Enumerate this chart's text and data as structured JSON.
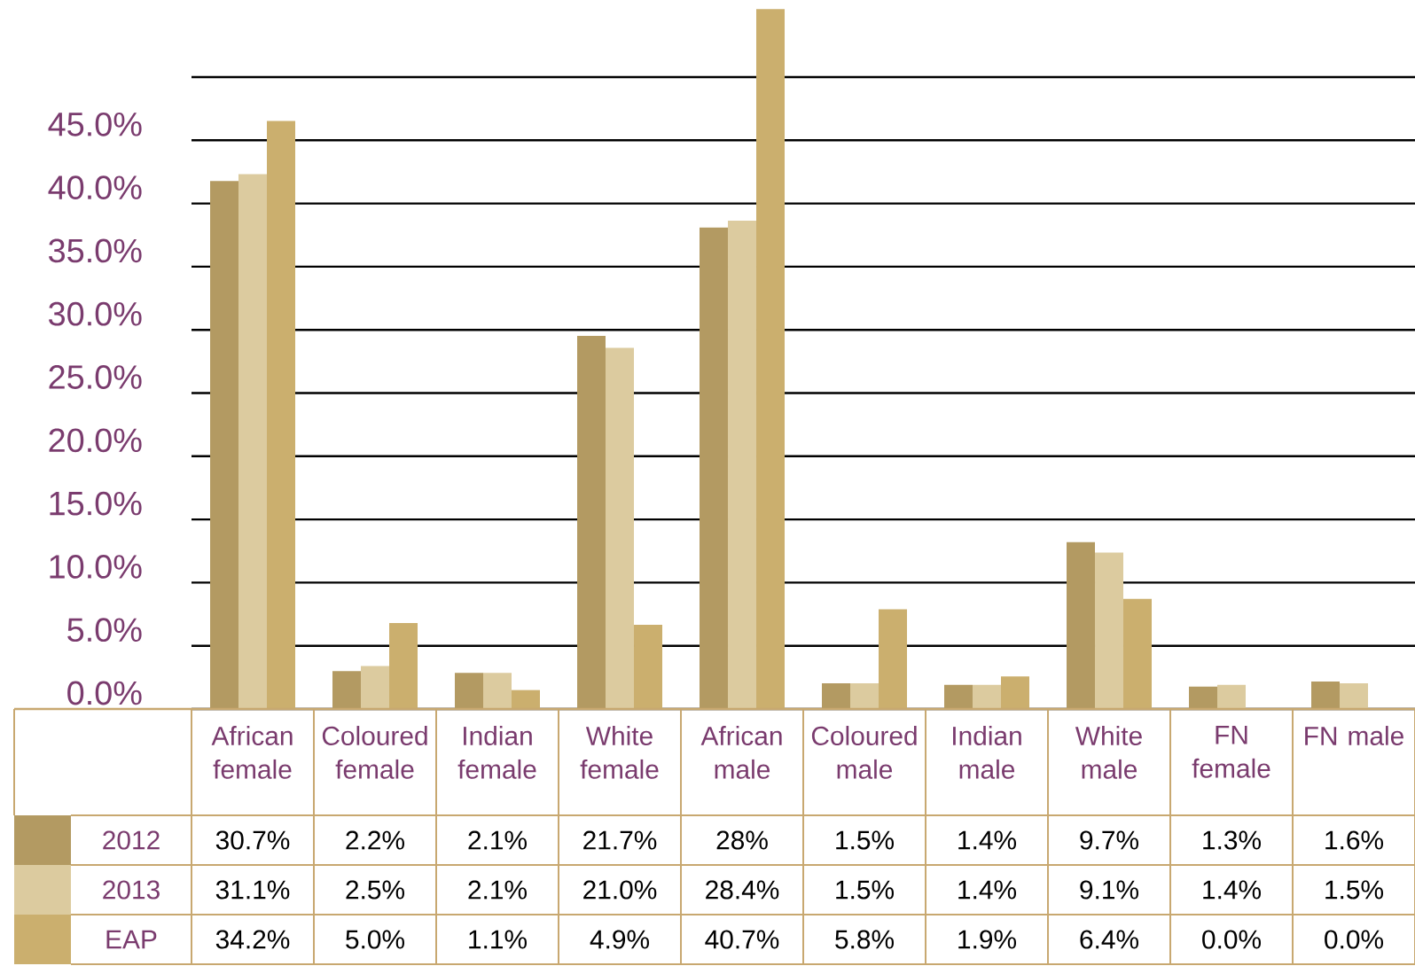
{
  "chart_data": {
    "type": "bar",
    "categories": [
      "African female",
      "Coloured female",
      "Indian female",
      "White female",
      "African male",
      "Coloured male",
      "Indian male",
      "White male",
      "FN female",
      "FN male"
    ],
    "series": [
      {
        "name": "2012",
        "color": "#b39a62",
        "values": [
          30.7,
          2.2,
          2.1,
          21.7,
          28,
          1.5,
          1.4,
          9.7,
          1.3,
          1.6
        ],
        "value_labels": [
          "30.7%",
          "2.2%",
          "2.1%",
          "21.7%",
          "28%",
          "1.5%",
          "1.4%",
          "9.7%",
          "1.3%",
          "1.6%"
        ]
      },
      {
        "name": "2013",
        "color": "#dccb9f",
        "values": [
          31.1,
          2.5,
          2.1,
          21.0,
          28.4,
          1.5,
          1.4,
          9.1,
          1.4,
          1.5
        ],
        "value_labels": [
          "31.1%",
          "2.5%",
          "2.1%",
          "21.0%",
          "28.4%",
          "1.5%",
          "1.4%",
          "9.1%",
          "1.4%",
          "1.5%"
        ]
      },
      {
        "name": "EAP",
        "color": "#cbaf6e",
        "values": [
          34.2,
          5.0,
          1.1,
          4.9,
          40.7,
          5.8,
          1.9,
          6.4,
          0.0,
          0.0
        ],
        "value_labels": [
          "34.2%",
          "5.0%",
          "1.1%",
          "4.9%",
          "40.7%",
          "5.8%",
          "1.9%",
          "6.4%",
          "0.0%",
          "0.0%"
        ]
      }
    ],
    "y2lim": [
      0,
      50
    ],
    "y2ticks": [
      {
        "value": 0,
        "label": "0.0%"
      },
      {
        "value": 5,
        "label": "5.0%"
      },
      {
        "value": 10,
        "label": "10.0%"
      },
      {
        "value": 15,
        "label": "15.0%"
      },
      {
        "value": 20,
        "label": "20.0%"
      },
      {
        "value": 25,
        "label": "25.0%"
      },
      {
        "value": 30,
        "label": "30.0%"
      },
      {
        "value": 35,
        "label": "35.0%"
      },
      {
        "value": 40,
        "label": "40.0%"
      },
      {
        "value": 45,
        "label": "45.0%"
      },
      {
        "value": 50,
        "label": null
      }
    ],
    "tick_labels": "y2",
    "data_labels": true,
    "grid": true,
    "legend": "bottom"
  }
}
